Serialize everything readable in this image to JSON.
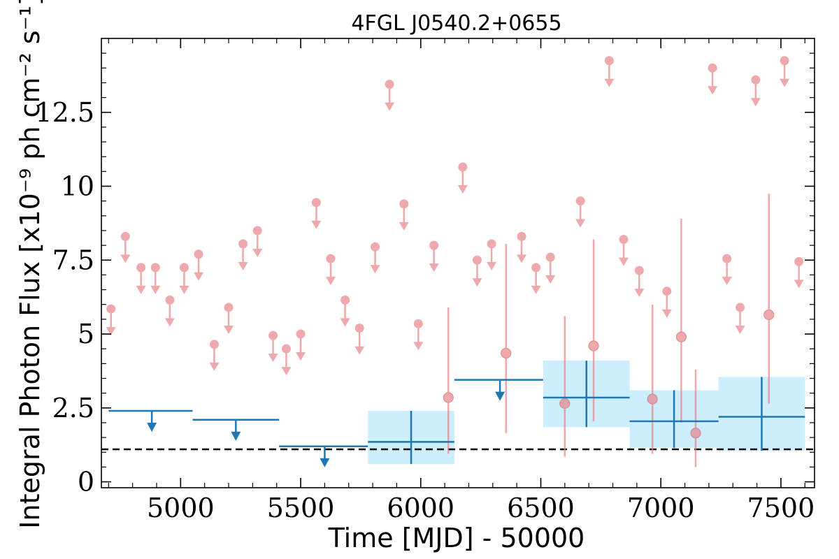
{
  "chart_data": {
    "type": "scatter",
    "title": "4FGL J0540.2+0655",
    "xlabel": "Time [MJD] - 50000",
    "ylabel": "Integral Photon Flux [x10⁻⁹ ph cm⁻² s⁻¹]",
    "xlim": [
      4670,
      7640
    ],
    "ylim": [
      -0.2,
      15.0
    ],
    "x_ticks": [
      5000,
      5500,
      6000,
      6500,
      7000,
      7500
    ],
    "x_tick_labels": [
      "5000",
      "5500",
      "6000",
      "6500",
      "7000",
      "7500"
    ],
    "y_ticks": [
      0,
      2.5,
      5,
      7.5,
      10,
      12.5
    ],
    "y_tick_labels": [
      "0",
      "2.5",
      "5",
      "7.5",
      "10",
      "12.5"
    ],
    "grid": false,
    "colors": {
      "monthly": "#e8868a",
      "yearly": "#1f77b4",
      "band": "#cdeefc",
      "reference_line": "#000000"
    },
    "reference_line": {
      "y": 1.1,
      "style": "dashed"
    },
    "series": [
      {
        "label_hidden": "monthly",
        "upper_limits": [
          {
            "x": 4710,
            "y": 5.85
          },
          {
            "x": 4770,
            "y": 8.3
          },
          {
            "x": 4835,
            "y": 7.25
          },
          {
            "x": 4895,
            "y": 7.25
          },
          {
            "x": 4955,
            "y": 6.15
          },
          {
            "x": 5015,
            "y": 7.25
          },
          {
            "x": 5075,
            "y": 7.7
          },
          {
            "x": 5140,
            "y": 4.65
          },
          {
            "x": 5200,
            "y": 5.9
          },
          {
            "x": 5260,
            "y": 8.05
          },
          {
            "x": 5320,
            "y": 8.5
          },
          {
            "x": 5385,
            "y": 4.95
          },
          {
            "x": 5440,
            "y": 4.5
          },
          {
            "x": 5500,
            "y": 5.0
          },
          {
            "x": 5565,
            "y": 9.45
          },
          {
            "x": 5625,
            "y": 7.55
          },
          {
            "x": 5685,
            "y": 6.15
          },
          {
            "x": 5745,
            "y": 5.2
          },
          {
            "x": 5810,
            "y": 7.95
          },
          {
            "x": 5870,
            "y": 13.45
          },
          {
            "x": 5930,
            "y": 9.4
          },
          {
            "x": 5990,
            "y": 5.35
          },
          {
            "x": 6055,
            "y": 8.0
          },
          {
            "x": 6175,
            "y": 10.65
          },
          {
            "x": 6235,
            "y": 7.5
          },
          {
            "x": 6295,
            "y": 8.05
          },
          {
            "x": 6420,
            "y": 8.3
          },
          {
            "x": 6480,
            "y": 7.25
          },
          {
            "x": 6540,
            "y": 7.6
          },
          {
            "x": 6665,
            "y": 9.5
          },
          {
            "x": 6785,
            "y": 14.25
          },
          {
            "x": 6845,
            "y": 8.2
          },
          {
            "x": 6910,
            "y": 7.15
          },
          {
            "x": 7025,
            "y": 6.45
          },
          {
            "x": 7215,
            "y": 14.0
          },
          {
            "x": 7275,
            "y": 7.55
          },
          {
            "x": 7330,
            "y": 5.9
          },
          {
            "x": 7395,
            "y": 13.6
          },
          {
            "x": 7515,
            "y": 14.25
          },
          {
            "x": 7575,
            "y": 7.45
          }
        ],
        "detections": [
          {
            "x": 6115,
            "y": 2.85,
            "ylo": 0.95,
            "yhi": 5.9
          },
          {
            "x": 6355,
            "y": 4.35,
            "ylo": 1.65,
            "yhi": 8.05
          },
          {
            "x": 6600,
            "y": 2.65,
            "ylo": 0.85,
            "yhi": 5.6
          },
          {
            "x": 6720,
            "y": 4.6,
            "ylo": 2.05,
            "yhi": 8.2
          },
          {
            "x": 6965,
            "y": 2.8,
            "ylo": 0.95,
            "yhi": 6.0
          },
          {
            "x": 7085,
            "y": 4.9,
            "ylo": 2.0,
            "yhi": 8.9
          },
          {
            "x": 7145,
            "y": 1.65,
            "ylo": 0.5,
            "yhi": 3.8
          },
          {
            "x": 7450,
            "y": 5.65,
            "ylo": 2.65,
            "yhi": 9.75
          }
        ]
      },
      {
        "label_hidden": "yearly",
        "upper_limits": [
          {
            "x0": 4700,
            "x1": 5050,
            "y": 2.4,
            "arrow_x": 4880
          },
          {
            "x0": 5050,
            "x1": 5410,
            "y": 2.1,
            "arrow_x": 5230
          },
          {
            "x0": 5410,
            "x1": 5780,
            "y": 1.2,
            "arrow_x": 5600
          },
          {
            "x0": 6140,
            "x1": 6510,
            "y": 3.45,
            "arrow_x": 6330
          }
        ],
        "detections": [
          {
            "x0": 5780,
            "x1": 6140,
            "x": 5960,
            "y": 1.35,
            "ylo": 0.6,
            "yhi": 2.4
          },
          {
            "x0": 6510,
            "x1": 6870,
            "x": 6690,
            "y": 2.85,
            "ylo": 1.85,
            "yhi": 4.1
          },
          {
            "x0": 6870,
            "x1": 7240,
            "x": 7055,
            "y": 2.05,
            "ylo": 1.15,
            "yhi": 3.1
          },
          {
            "x0": 7240,
            "x1": 7600,
            "x": 7420,
            "y": 2.2,
            "ylo": 1.05,
            "yhi": 3.55
          }
        ]
      }
    ]
  }
}
